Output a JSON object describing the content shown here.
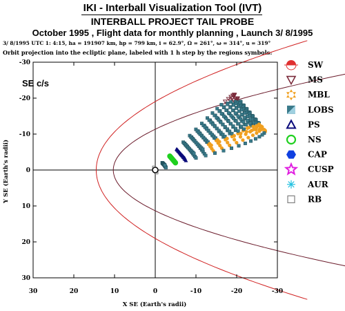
{
  "header": {
    "title": "IKI - Interball Visualization Tool (IVT)",
    "subtitle": "INTERBALL PROJECT TAIL PROBE",
    "mission_line": "October  1995 ,  Flight data for monthly planning ,   Launch  3/ 8/1995",
    "orbit_params": "3/ 8/1995 UTC  1: 4:15, ha = 191907 km, hp =     799 km, i = 62.9°, Ω = 261°, ω = 314°, u = 319°",
    "description": "Orbit projection into the ecliptic plane, labeled with 1 h step by the regions symbols:"
  },
  "chart_data": {
    "type": "scatter",
    "inner_label": "SE c/s",
    "xlabel": "X SE (Earth's radii)",
    "ylabel": "Y SE (Earth's radii)",
    "xlim": [
      30,
      -30
    ],
    "ylim": [
      30,
      -30
    ],
    "x_ticks": [
      "30",
      "20",
      "10",
      "0",
      "-10",
      "-20",
      "-30"
    ],
    "y_ticks": [
      "-30",
      "-20",
      "-10",
      "0",
      "10",
      "20",
      "30"
    ],
    "grid": true,
    "legend_position": "right",
    "legend": [
      {
        "label": "SW",
        "symbol": "sun",
        "color": "#e03030"
      },
      {
        "label": "MS",
        "symbol": "triangle-down",
        "color": "#7a2a3a"
      },
      {
        "label": "MBL",
        "symbol": "star6",
        "color": "#f0a020"
      },
      {
        "label": "LOBS",
        "symbol": "square-split",
        "color": "#3a7a8a"
      },
      {
        "label": "PS",
        "symbol": "triangle-up",
        "color": "#0a0a7a"
      },
      {
        "label": "NS",
        "symbol": "circle",
        "color": "#20d020"
      },
      {
        "label": "CAP",
        "symbol": "hexagon",
        "color": "#1040e0"
      },
      {
        "label": "CUSP",
        "symbol": "star5",
        "color": "#e020e0"
      },
      {
        "label": "AUR",
        "symbol": "asterisk",
        "color": "#20c0e0"
      },
      {
        "label": "RB",
        "symbol": "square",
        "color": "#808080"
      }
    ],
    "boundaries": [
      {
        "name": "bow shock",
        "color": "#d02020",
        "x0": 14.5,
        "k": 0.04
      },
      {
        "name": "magnetopause",
        "color": "#6a1a2a",
        "x0": 10.3,
        "k": 0.08
      }
    ],
    "orbit_colors": {
      "MS": "#7a2a3a",
      "MBL": "#f0a020",
      "LOBS": "#3a7a8a",
      "PS": "#0a0a7a",
      "NS": "#20d020",
      "RB": "#808080"
    }
  }
}
